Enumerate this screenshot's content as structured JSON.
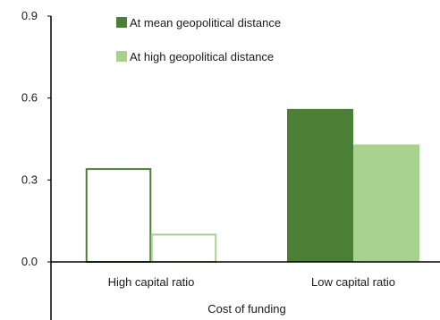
{
  "chart_data": {
    "type": "bar",
    "categories": [
      "High capital ratio",
      "Low capital ratio"
    ],
    "series": [
      {
        "name": "At mean geopolitical distance",
        "values": [
          0.34,
          0.56
        ]
      },
      {
        "name": "At high geopolitical distance",
        "values": [
          0.1,
          0.43
        ]
      }
    ],
    "xlabel": "Cost of funding",
    "ylabel": "",
    "ylim": [
      0,
      0.9
    ],
    "yticks": [
      "0.0",
      "0.3",
      "0.6",
      "0.9"
    ],
    "grid": false,
    "legend_position": "top",
    "styles": {
      "High capital ratio": "outline",
      "Low capital ratio": "filled"
    },
    "colors": {
      "At mean geopolitical distance": "#4b7f35",
      "At high geopolitical distance": "#a9d18e"
    }
  }
}
